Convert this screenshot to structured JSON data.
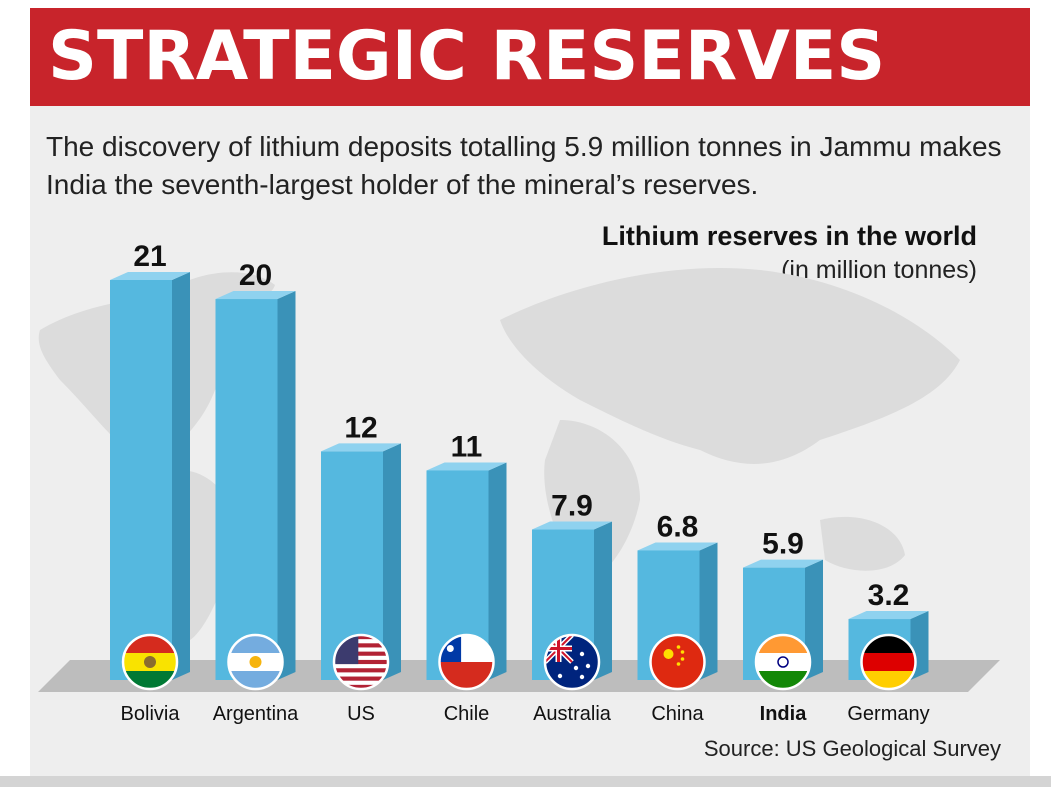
{
  "header": {
    "title": "STRATEGIC RESERVES"
  },
  "intro": {
    "text": "The discovery of lithium deposits totalling 5.9 million tonnes in Jammu makes India the seventh-largest holder of the mineral’s reserves."
  },
  "source": "Source: US Geological Survey",
  "colors": {
    "banner": "#c8242b",
    "bar_front": "#55b8df",
    "bar_side": "#3a92b8",
    "bar_top": "#8fd2ef"
  },
  "chart_data": {
    "type": "bar",
    "title": "Lithium reserves in the world",
    "subtitle": "(in million tonnes)",
    "categories": [
      "Bolivia",
      "Argentina",
      "US",
      "Chile",
      "Australia",
      "China",
      "India",
      "Germany"
    ],
    "values": [
      21,
      20,
      12,
      11,
      7.9,
      6.8,
      5.9,
      3.2
    ],
    "value_labels": [
      "21",
      "20",
      "12",
      "11",
      "7.9",
      "6.8",
      "5.9",
      "3.2"
    ],
    "highlight": "India",
    "flags": [
      "bolivia-flag-icon",
      "argentina-flag-icon",
      "us-flag-icon",
      "chile-flag-icon",
      "australia-flag-icon",
      "china-flag-icon",
      "india-flag-icon",
      "germany-flag-icon"
    ],
    "ylim": [
      0,
      21
    ],
    "grid": false,
    "legend": "none"
  }
}
